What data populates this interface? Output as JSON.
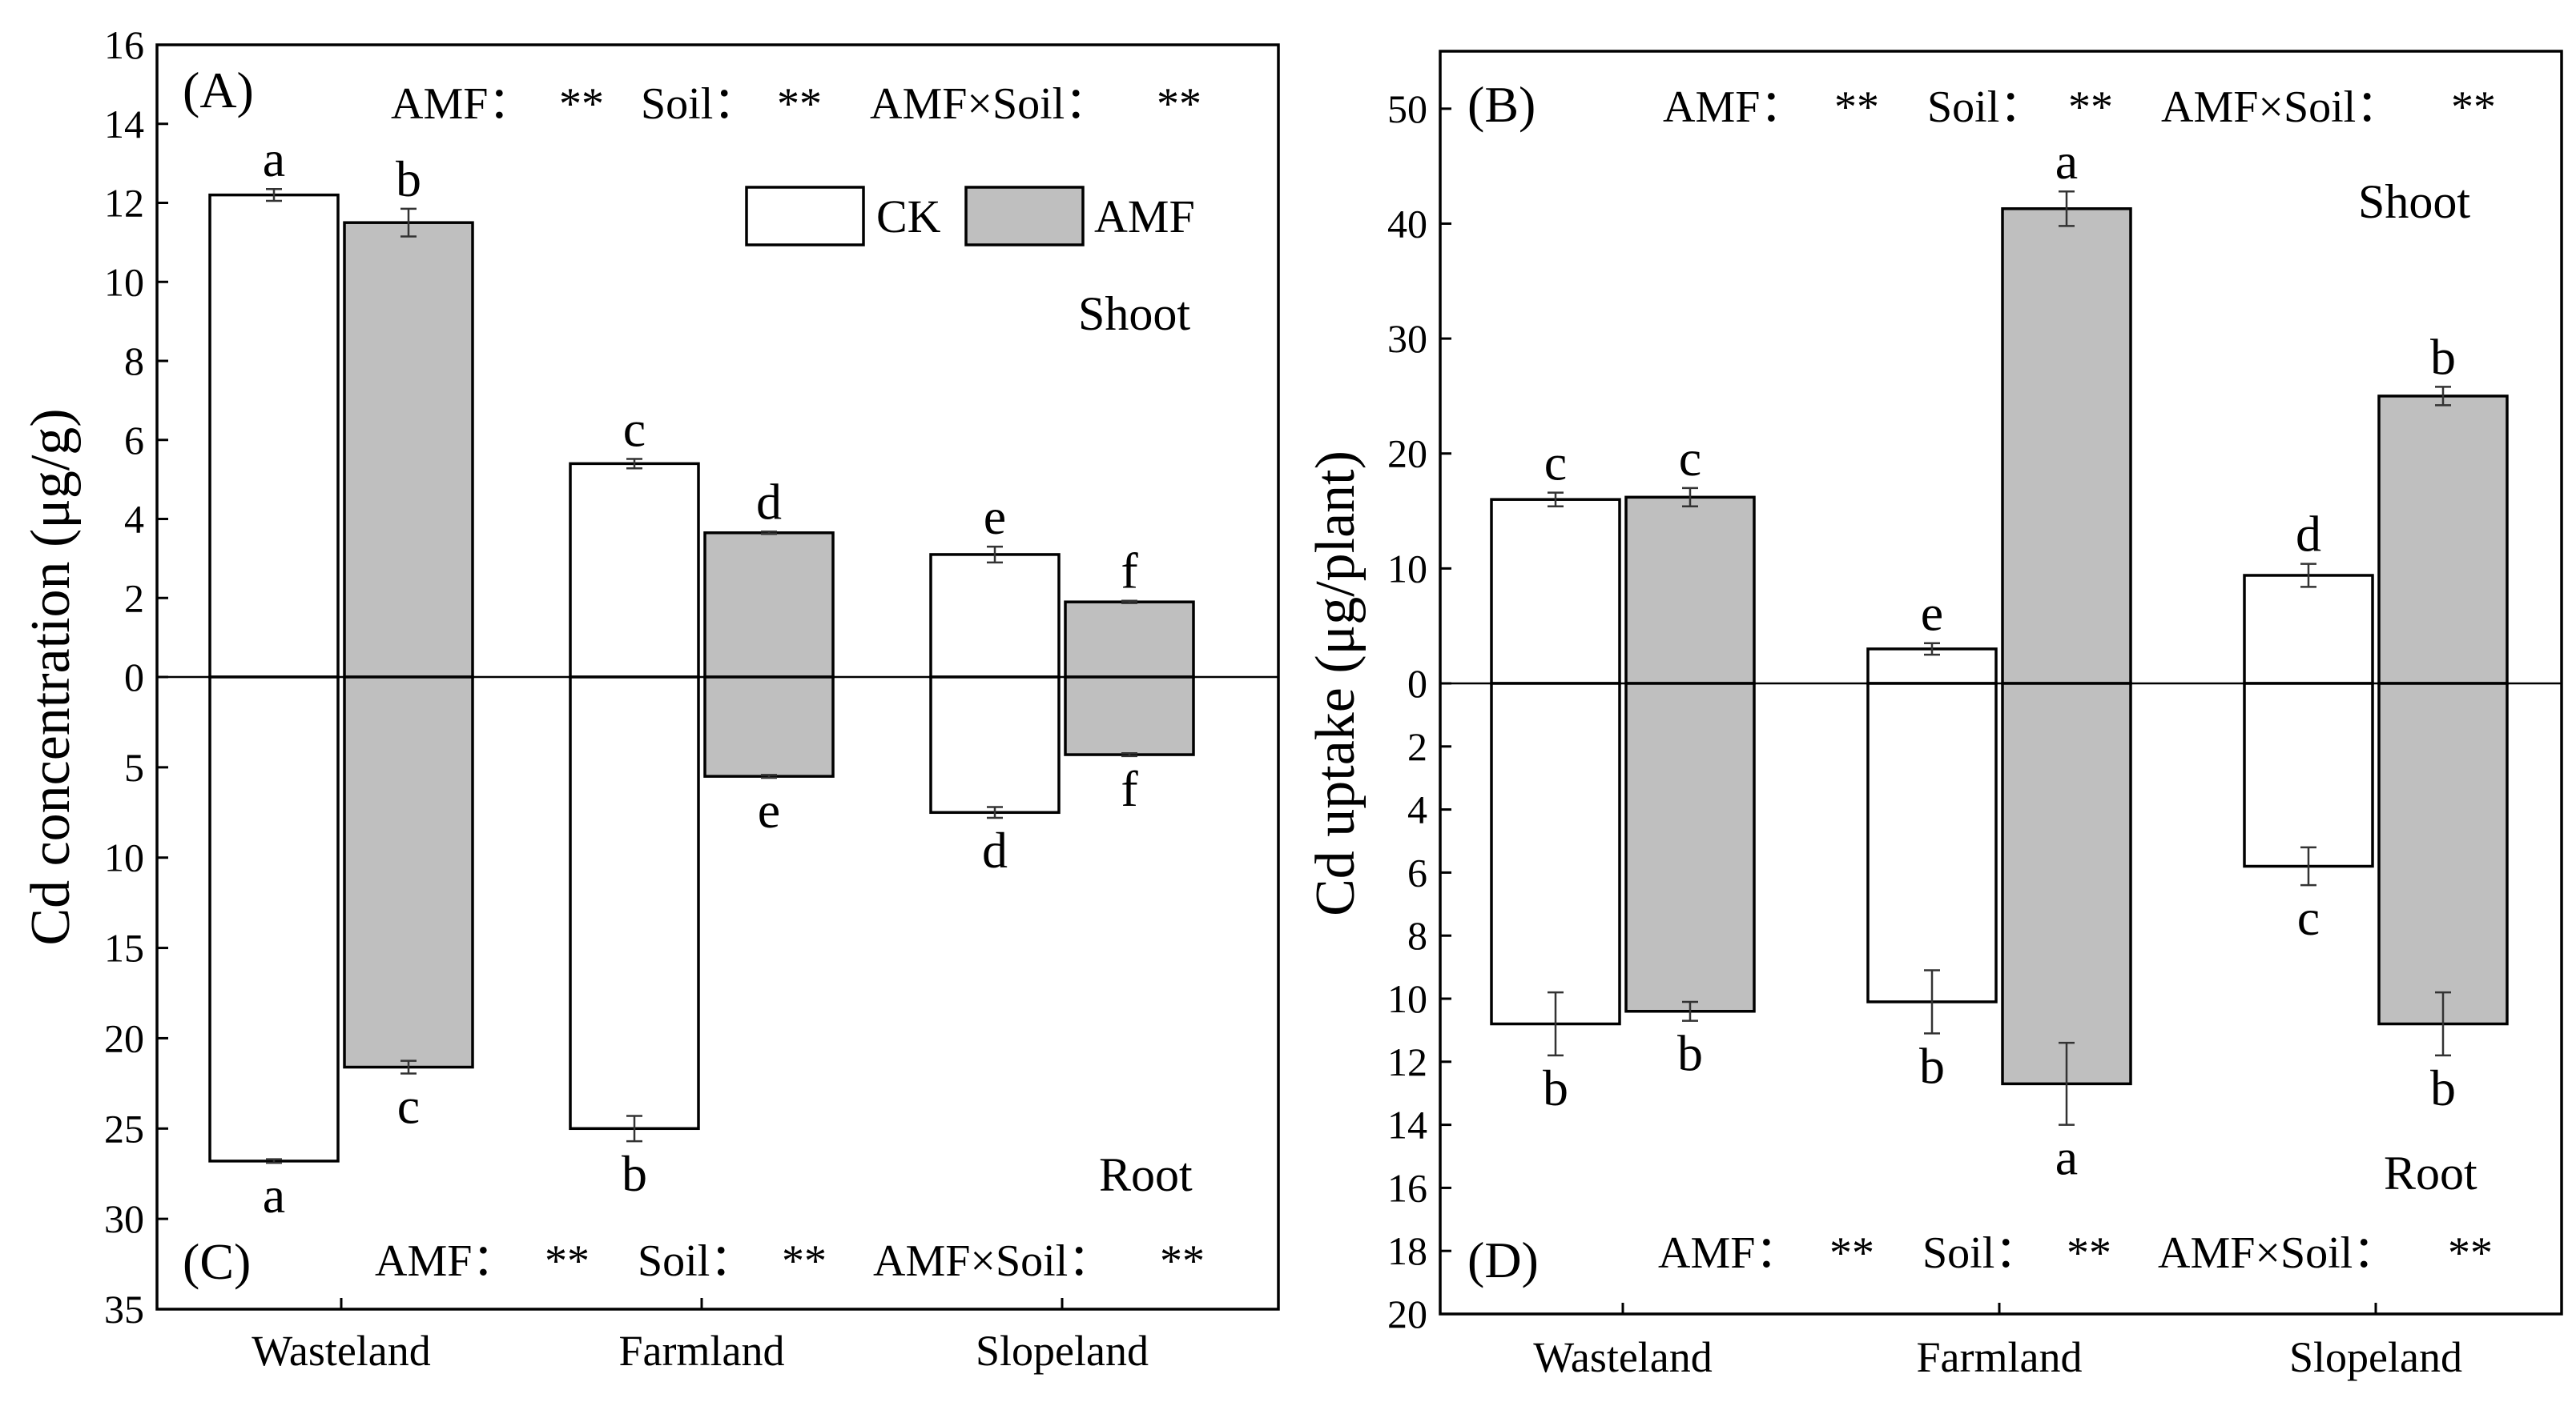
{
  "chart_data": [
    {
      "type": "bar",
      "ylabel": "Cd concentration (μg/g)",
      "categories": [
        "Wasteland",
        "Farmland",
        "Slopeland"
      ],
      "legend": [
        {
          "name": "CK",
          "color": "#ffffff"
        },
        {
          "name": "AMF",
          "color": "#bfbfbf"
        }
      ],
      "top": {
        "panel_label": "(A)",
        "part_label": "Shoot",
        "stats": [
          "AMF：",
          "**",
          "Soil：",
          "**",
          "AMF×Soil：",
          "**"
        ],
        "ylim": [
          0,
          16
        ],
        "ticks": [
          "0",
          "2",
          "4",
          "6",
          "8",
          "10",
          "12",
          "14",
          "16"
        ],
        "series": [
          {
            "name": "CK",
            "values": [
              12.2,
              5.4,
              3.1
            ],
            "errors": [
              0.15,
              0.12,
              0.2
            ],
            "letters": [
              "a",
              "c",
              "e"
            ]
          },
          {
            "name": "AMF",
            "values": [
              11.5,
              3.65,
              1.9
            ],
            "errors": [
              0.35,
              0.03,
              0.03
            ],
            "letters": [
              "b",
              "d",
              "f"
            ]
          }
        ]
      },
      "bottom": {
        "panel_label": "(C)",
        "part_label": "Root",
        "stats": [
          "AMF：",
          "**",
          "Soil：",
          "**",
          "AMF×Soil：",
          "**"
        ],
        "ylim": [
          0,
          35
        ],
        "ticks": [
          "5",
          "10",
          "15",
          "20",
          "25",
          "30",
          "35"
        ],
        "series": [
          {
            "name": "CK",
            "values": [
              26.8,
              25.0,
              7.5
            ],
            "errors": [
              0.1,
              0.7,
              0.3
            ],
            "letters": [
              "a",
              "b",
              "d"
            ]
          },
          {
            "name": "AMF",
            "values": [
              21.6,
              5.5,
              4.3
            ],
            "errors": [
              0.35,
              0.08,
              0.08
            ],
            "letters": [
              "c",
              "e",
              "f"
            ]
          }
        ]
      }
    },
    {
      "type": "bar",
      "ylabel": "Cd uptake (μg/plant)",
      "categories": [
        "Wasteland",
        "Farmland",
        "Slopeland"
      ],
      "top": {
        "panel_label": "(B)",
        "part_label": "Shoot",
        "stats": [
          "AMF：",
          "**",
          "Soil：",
          "**",
          "AMF×Soil：",
          "**"
        ],
        "ylim": [
          0,
          55
        ],
        "ticks": [
          "0",
          "10",
          "20",
          "30",
          "40",
          "50"
        ],
        "series": [
          {
            "name": "CK",
            "values": [
              16.0,
              3.0,
              9.4
            ],
            "errors": [
              0.6,
              0.5,
              1.0
            ],
            "letters": [
              "c",
              "e",
              "d"
            ]
          },
          {
            "name": "AMF",
            "values": [
              16.2,
              41.3,
              25.0
            ],
            "errors": [
              0.8,
              1.5,
              0.8
            ],
            "letters": [
              "c",
              "a",
              "b"
            ]
          }
        ]
      },
      "bottom": {
        "panel_label": "(D)",
        "part_label": "Root",
        "stats": [
          "AMF：",
          "**",
          "Soil：",
          "**",
          "AMF×Soil：",
          "**"
        ],
        "ylim": [
          0,
          20
        ],
        "ticks": [
          "2",
          "4",
          "6",
          "8",
          "10",
          "12",
          "14",
          "16",
          "18",
          "20"
        ],
        "series": [
          {
            "name": "CK",
            "values": [
              10.8,
              10.1,
              5.8
            ],
            "errors": [
              1.0,
              1.0,
              0.6
            ],
            "letters": [
              "b",
              "b",
              "c"
            ]
          },
          {
            "name": "AMF",
            "values": [
              10.4,
              12.7,
              10.8
            ],
            "errors": [
              0.3,
              1.3,
              1.0
            ],
            "letters": [
              "b",
              "a",
              "b"
            ]
          }
        ]
      }
    }
  ]
}
